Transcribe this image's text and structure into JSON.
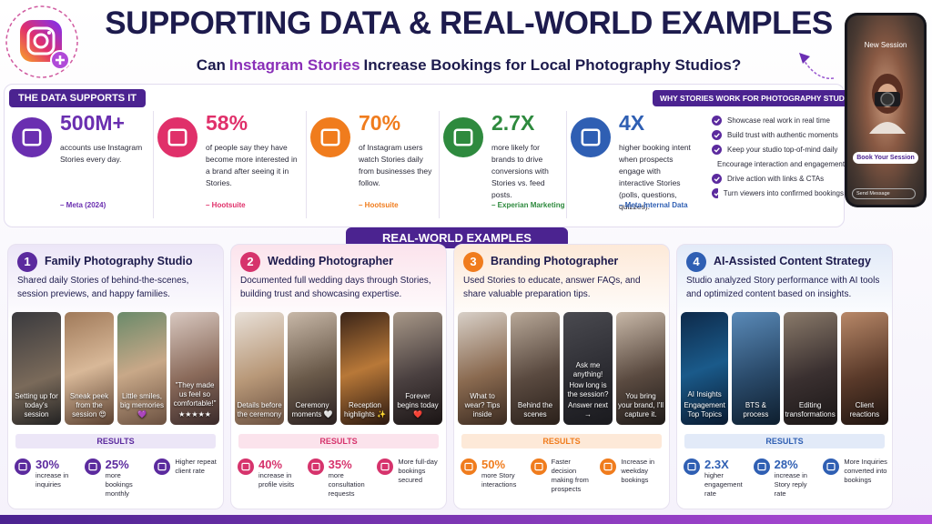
{
  "header": {
    "title": "SUPPORTING DATA & REAL-WORLD EXAMPLES",
    "subtitle_start": "Can",
    "subtitle_highlight": "Instagram Stories",
    "subtitle_end": "Increase Bookings for Local Photography Studios?"
  },
  "data_section": {
    "label": "THE DATA SUPPORTS IT",
    "stats": [
      {
        "value": "500M+",
        "text": "accounts use Instagram Stories every day.",
        "source": "– Meta (2024)"
      },
      {
        "value": "58%",
        "text": "of people say they have become more interested in a brand after seeing it in Stories.",
        "source": "– Hootsuite"
      },
      {
        "value": "70%",
        "text": "of Instagram users watch Stories daily from businesses they follow.",
        "source": "– Hootsuite"
      },
      {
        "value": "2.7X",
        "text": "more likely for brands to drive conversions with Stories vs. feed posts.",
        "source": "– Experian Marketing"
      },
      {
        "value": "4X",
        "text": "higher booking intent when prospects engage with interactive Stories (polls, questions, quizzes).",
        "source": "– Meta Internal Data"
      }
    ]
  },
  "why_section": {
    "title": "WHY STORIES WORK FOR PHOTOGRAPHY STUDIOS",
    "items": [
      "Showcase real work in real time",
      "Build trust with authentic moments",
      "Keep your studio top-of-mind daily",
      "Encourage interaction and engagement",
      "Drive action with links & CTAs",
      "Turn viewers into confirmed bookings"
    ]
  },
  "phone": {
    "header": "New Session",
    "button": "Book Your Session",
    "input": "Send Message"
  },
  "examples": {
    "label": "REAL-WORLD EXAMPLES",
    "cards": [
      {
        "number": "1",
        "title": "Family Photography Studio",
        "description": "Shared daily Stories of behind-the-scenes, session previews, and happy families.",
        "tiles": [
          [
            "Setting up for today's session"
          ],
          [
            "Sneak peek from the session 😍"
          ],
          [
            "Little smiles, big memories 💜"
          ],
          [
            "\"They made us feel so comfortable!\"",
            "★★★★★"
          ]
        ],
        "results_label": "RESULTS",
        "results": [
          {
            "value": "30%",
            "text": "increase in inquiries"
          },
          {
            "value": "25%",
            "text": "more bookings monthly"
          },
          {
            "text": "Higher repeat client rate"
          }
        ]
      },
      {
        "number": "2",
        "title": "Wedding Photographer",
        "description": "Documented full wedding days through Stories, building trust and showcasing expertise.",
        "tiles": [
          [
            "Details before the ceremony"
          ],
          [
            "Ceremony moments 🤍"
          ],
          [
            "Reception highlights ✨"
          ],
          [
            "Forever begins today ❤️"
          ]
        ],
        "results_label": "RESULTS",
        "results": [
          {
            "value": "40%",
            "text": "increase in profile visits"
          },
          {
            "value": "35%",
            "text": "more consultation requests"
          },
          {
            "text": "More full-day bookings secured"
          }
        ]
      },
      {
        "number": "3",
        "title": "Branding Photographer",
        "description": "Used Stories to educate, answer FAQs, and share valuable preparation tips.",
        "tiles": [
          [
            "What to wear? Tips inside"
          ],
          [
            "Behind the scenes"
          ],
          [
            "Ask me anything!",
            "How long is the session?",
            "Answer next →"
          ],
          [
            "You bring your brand, I'll capture it."
          ]
        ],
        "results_label": "RESULTS",
        "results": [
          {
            "value": "50%",
            "text": "more Story interactions"
          },
          {
            "text": "Faster decision making from prospects"
          },
          {
            "text": "Increase in weekday bookings"
          }
        ]
      },
      {
        "number": "4",
        "title": "AI-Assisted Content Strategy",
        "description": "Studio analyzed Story performance with AI tools and optimized content based on insights.",
        "tiles": [
          [
            "AI Insights",
            "Engagement Top Topics"
          ],
          [
            "BTS & process"
          ],
          [
            "Editing transformations"
          ],
          [
            "Client reactions"
          ]
        ],
        "results_label": "RESULTS",
        "results": [
          {
            "value": "2.3X",
            "text": "higher engagement rate"
          },
          {
            "value": "28%",
            "text": "increase in Story reply rate"
          },
          {
            "text": "More Inquiries converted into bookings"
          }
        ]
      }
    ]
  }
}
